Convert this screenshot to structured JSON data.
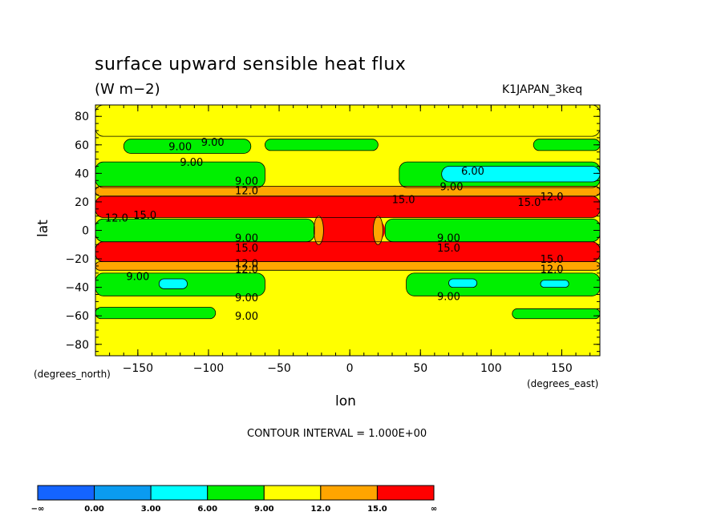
{
  "chart_data": {
    "type": "heatmap",
    "title": "surface upward sensible heat flux",
    "units": "(W m−2)",
    "run_id": "K1JAPAN_3keq",
    "xlabel": "lon",
    "ylabel": "lat",
    "x_units_label": "(degrees_east)",
    "y_units_label": "(degrees_north)",
    "xlim": [
      -180,
      177
    ],
    "ylim": [
      -88,
      88
    ],
    "x_ticks": [
      -150,
      -100,
      -50,
      0,
      50,
      100,
      150
    ],
    "x_tick_labels": [
      "−150",
      "−100",
      "−50",
      "0",
      "50",
      "100",
      "150"
    ],
    "y_ticks": [
      80,
      60,
      40,
      20,
      0,
      -20,
      -40,
      -60,
      -80
    ],
    "y_tick_labels": [
      "80",
      "60",
      "40",
      "20",
      "0",
      "−20",
      "−40",
      "−60",
      "−80"
    ],
    "contour_interval_text": "CONTOUR INTERVAL = 1.000E+00",
    "colorbar": {
      "bounds_labels": [
        "−∞",
        "0.00",
        "3.00",
        "6.00",
        "9.00",
        "12.0",
        "15.0",
        "∞"
      ],
      "colors": [
        "#1464ff",
        "#0a9bf0",
        "#00ffff",
        "#00f000",
        "#ffff00",
        "#ffa500",
        "#ff0000"
      ]
    },
    "bands": [
      {
        "lat_top": 88,
        "lat_bottom": 66,
        "level": "9-12",
        "color": "#ffff00",
        "lon_from": -180,
        "lon_to": 177
      },
      {
        "lat_top": 64,
        "lat_bottom": 54,
        "level": "6-9",
        "color": "#00f000",
        "lon_from": -160,
        "lon_to": -70
      },
      {
        "lat_top": 64,
        "lat_bottom": 56,
        "level": "6-9",
        "color": "#00f000",
        "lon_from": -60,
        "lon_to": 20
      },
      {
        "lat_top": 64,
        "lat_bottom": 56,
        "level": "6-9",
        "color": "#00f000",
        "lon_from": 130,
        "lon_to": 177
      },
      {
        "lat_top": 48,
        "lat_bottom": 30,
        "level": "6-9",
        "color": "#00f000",
        "lon_from": -180,
        "lon_to": -60
      },
      {
        "lat_top": 48,
        "lat_bottom": 30,
        "level": "6-9",
        "color": "#00f000",
        "lon_from": 35,
        "lon_to": 177
      },
      {
        "lat_top": 45,
        "lat_bottom": 34,
        "level": "3-6",
        "color": "#00ffff",
        "lon_from": 65,
        "lon_to": 177
      },
      {
        "lat_top": 31,
        "lat_bottom": 24,
        "level": "12-15",
        "color": "#ffa500",
        "lon_from": -180,
        "lon_to": 177
      },
      {
        "lat_top": 24,
        "lat_bottom": 9,
        "level": ">15",
        "color": "#ff0000",
        "lon_from": -180,
        "lon_to": 177
      },
      {
        "lat_top": 8,
        "lat_bottom": -8,
        "level": "6-9",
        "color": "#00f000",
        "lon_from": -180,
        "lon_to": -25
      },
      {
        "lat_top": 8,
        "lat_bottom": -8,
        "level": "6-9",
        "color": "#00f000",
        "lon_from": 25,
        "lon_to": 177
      },
      {
        "lat_top": -8,
        "lat_bottom": -22,
        "level": ">15",
        "color": "#ff0000",
        "lon_from": -180,
        "lon_to": 177
      },
      {
        "lat_top": -22,
        "lat_bottom": -28,
        "level": "12-15",
        "color": "#ffa500",
        "lon_from": -180,
        "lon_to": 177
      },
      {
        "lat_top": -30,
        "lat_bottom": -46,
        "level": "6-9",
        "color": "#00f000",
        "lon_from": -180,
        "lon_to": -60
      },
      {
        "lat_top": -30,
        "lat_bottom": -46,
        "level": "6-9",
        "color": "#00f000",
        "lon_from": 40,
        "lon_to": 177
      },
      {
        "lat_top": -34,
        "lat_bottom": -41,
        "level": "3-6",
        "color": "#00ffff",
        "lon_from": -135,
        "lon_to": -115
      },
      {
        "lat_top": -34,
        "lat_bottom": -40,
        "level": "3-6",
        "color": "#00ffff",
        "lon_from": 70,
        "lon_to": 90
      },
      {
        "lat_top": -35,
        "lat_bottom": -40,
        "level": "3-6",
        "color": "#00ffff",
        "lon_from": 135,
        "lon_to": 155
      },
      {
        "lat_top": -54,
        "lat_bottom": -62,
        "level": "6-9",
        "color": "#00f000",
        "lon_from": -180,
        "lon_to": -95
      },
      {
        "lat_top": -55,
        "lat_bottom": -62,
        "level": "6-9",
        "color": "#00f000",
        "lon_from": 115,
        "lon_to": 177
      }
    ],
    "contour_labels": [
      {
        "text": "9.00",
        "lon": -120,
        "lat": 59
      },
      {
        "text": "9.00",
        "lon": -97,
        "lat": 62
      },
      {
        "text": "9.00",
        "lon": -112,
        "lat": 48
      },
      {
        "text": "6.00",
        "lon": 87,
        "lat": 42
      },
      {
        "text": "9.00",
        "lon": -73,
        "lat": 35
      },
      {
        "text": "12.0",
        "lon": -73,
        "lat": 28
      },
      {
        "text": "9.00",
        "lon": 72,
        "lat": 31
      },
      {
        "text": "15.0",
        "lon": 38,
        "lat": 22
      },
      {
        "text": "15.0",
        "lon": 127,
        "lat": 20
      },
      {
        "text": "12.0",
        "lon": 143,
        "lat": 24
      },
      {
        "text": "12.0",
        "lon": -165,
        "lat": 9
      },
      {
        "text": "15.0",
        "lon": -145,
        "lat": 11
      },
      {
        "text": "9.00",
        "lon": -73,
        "lat": -5
      },
      {
        "text": "9.00",
        "lon": 70,
        "lat": -5
      },
      {
        "text": "15.0",
        "lon": -73,
        "lat": -12
      },
      {
        "text": "15.0",
        "lon": 70,
        "lat": -12
      },
      {
        "text": "12.0",
        "lon": -73,
        "lat": -23
      },
      {
        "text": "15.0",
        "lon": 143,
        "lat": -20
      },
      {
        "text": "12.0",
        "lon": -73,
        "lat": -27
      },
      {
        "text": "12.0",
        "lon": 143,
        "lat": -27
      },
      {
        "text": "9.00",
        "lon": -150,
        "lat": -32
      },
      {
        "text": "9.00",
        "lon": -73,
        "lat": -47
      },
      {
        "text": "9.00",
        "lon": 70,
        "lat": -46
      },
      {
        "text": "9.00",
        "lon": -73,
        "lat": -60
      }
    ]
  }
}
